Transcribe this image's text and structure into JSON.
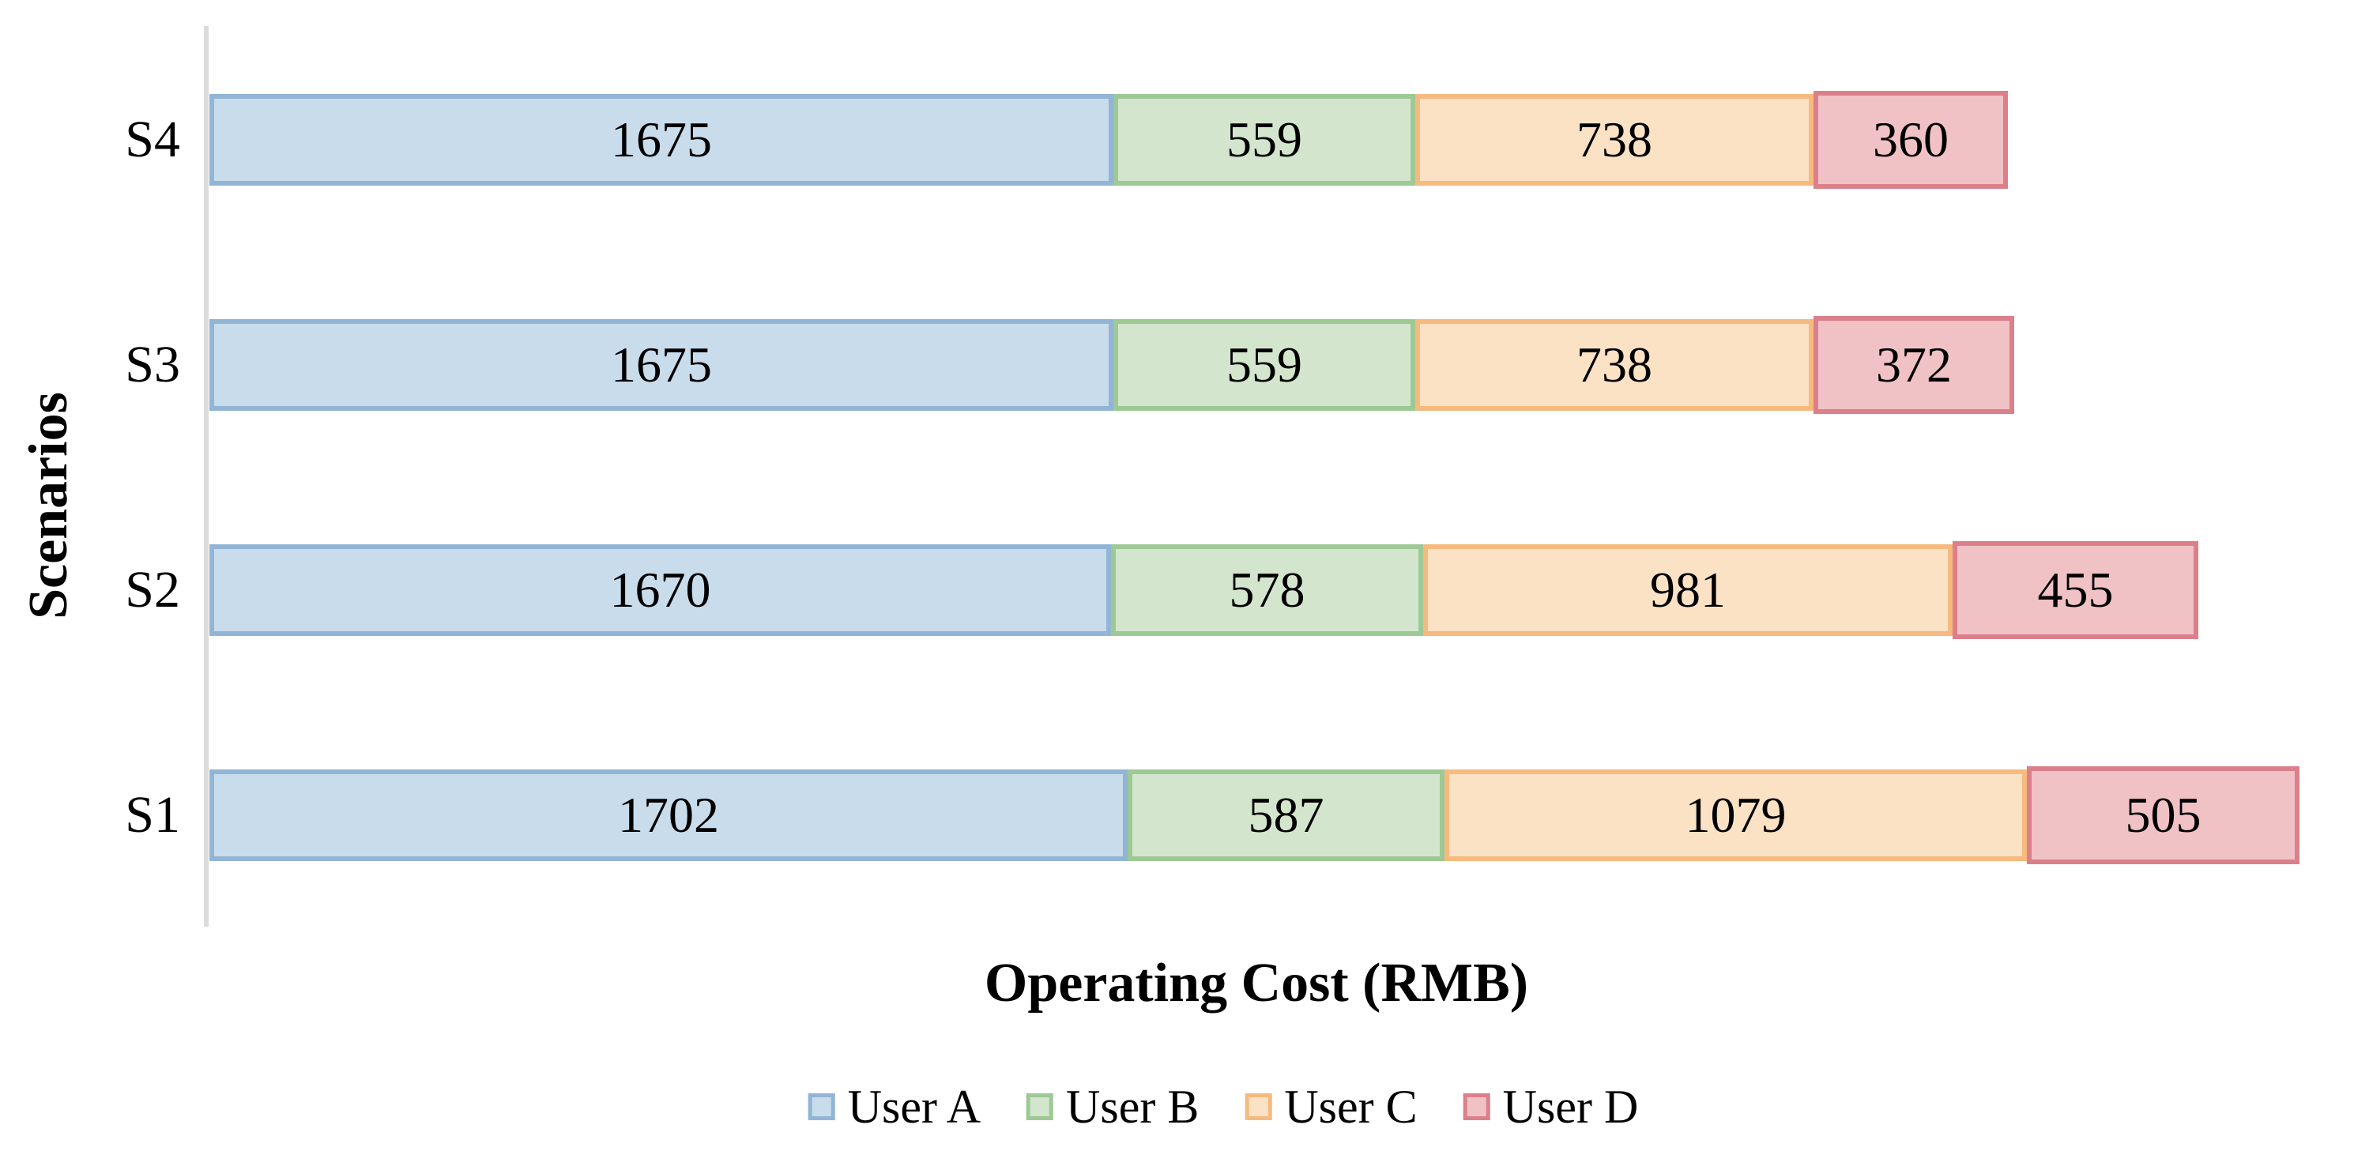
{
  "chart_data": {
    "type": "bar",
    "orientation": "horizontal-stacked",
    "title": "",
    "xlabel": "Operating Cost (RMB)",
    "ylabel": "Scenarios",
    "xlim": [
      0,
      4000
    ],
    "grid": false,
    "legend_position": "bottom",
    "categories": [
      "S4",
      "S3",
      "S2",
      "S1"
    ],
    "series": [
      {
        "name": "User A",
        "values": [
          1675,
          1675,
          1670,
          1702
        ],
        "fill": "#C9DCEB",
        "border": "#92B5D6"
      },
      {
        "name": "User B",
        "values": [
          559,
          559,
          578,
          587
        ],
        "fill": "#D3E6CD",
        "border": "#9DC995"
      },
      {
        "name": "User C",
        "values": [
          738,
          738,
          981,
          1079
        ],
        "fill": "#FBE2C5",
        "border": "#F6BA7F"
      },
      {
        "name": "User D",
        "values": [
          360,
          372,
          455,
          505
        ],
        "fill": "#F0C2C6",
        "border": "#DB808A"
      }
    ],
    "axis_line_color": "#DCDCDC",
    "bar_label_color": "#000000"
  }
}
